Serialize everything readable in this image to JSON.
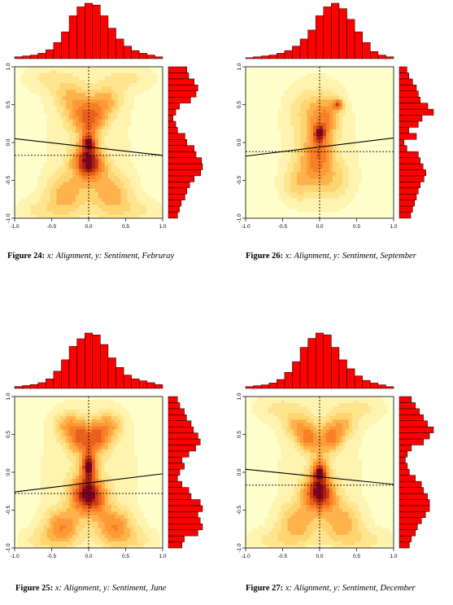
{
  "figures": [
    {
      "number": "Figure 24:",
      "x_label": "Alignment",
      "y_label": "Sentiment",
      "month": "Februray",
      "chart_data": {
        "type": "heatmap",
        "xlim": [
          -1,
          1
        ],
        "ylim": [
          -1,
          1
        ],
        "x_ticks": [
          "-1.0",
          "-0.5",
          "0.0",
          "0.5",
          "1.0"
        ],
        "y_ticks": [
          "-1.0",
          "-0.5",
          "0.0",
          "0.5",
          "1.0"
        ],
        "regression_line": {
          "intercept": -0.06,
          "slope": -0.11
        },
        "median_x": 0.0,
        "median_y": -0.17,
        "top_histogram": [
          2,
          3,
          4,
          6,
          10,
          18,
          30,
          48,
          58,
          62,
          60,
          48,
          34,
          22,
          14,
          9,
          6,
          4,
          2
        ],
        "right_histogram": [
          10,
          12,
          14,
          18,
          20,
          23,
          28,
          35,
          37,
          36,
          30,
          28,
          20,
          18,
          10,
          8,
          5,
          8,
          12,
          24,
          30,
          32,
          28,
          22,
          20
        ],
        "top_histogram_order": "left to right",
        "right_histogram_order": "bottom to top",
        "blobs": [
          {
            "x": 0.0,
            "y": 0.0,
            "sx": 0.06,
            "sy": 0.06,
            "w": 1.0
          },
          {
            "x": -0.1,
            "y": 0.35,
            "sx": 0.13,
            "sy": 0.16,
            "w": 0.75
          },
          {
            "x": 0.1,
            "y": 0.35,
            "sx": 0.11,
            "sy": 0.15,
            "w": 0.7
          },
          {
            "x": -0.25,
            "y": 0.6,
            "sx": 0.16,
            "sy": 0.15,
            "w": 0.5
          },
          {
            "x": 0.25,
            "y": 0.55,
            "sx": 0.14,
            "sy": 0.14,
            "w": 0.55
          },
          {
            "x": -0.08,
            "y": -0.25,
            "sx": 0.12,
            "sy": 0.14,
            "w": 1.0
          },
          {
            "x": 0.08,
            "y": -0.3,
            "sx": 0.12,
            "sy": 0.14,
            "w": 0.9
          },
          {
            "x": -0.3,
            "y": -0.65,
            "sx": 0.18,
            "sy": 0.17,
            "w": 0.65
          },
          {
            "x": 0.3,
            "y": -0.65,
            "sx": 0.18,
            "sy": 0.17,
            "w": 0.65
          },
          {
            "x": 0.0,
            "y": -0.05,
            "sx": 0.08,
            "sy": 0.24,
            "w": 0.8
          },
          {
            "x": -0.55,
            "y": 0.85,
            "sx": 0.25,
            "sy": 0.12,
            "w": 0.25
          },
          {
            "x": 0.55,
            "y": 0.85,
            "sx": 0.25,
            "sy": 0.12,
            "w": 0.25
          },
          {
            "x": -0.55,
            "y": -0.9,
            "sx": 0.3,
            "sy": 0.12,
            "w": 0.3
          },
          {
            "x": 0.55,
            "y": -0.9,
            "sx": 0.3,
            "sy": 0.12,
            "w": 0.3
          },
          {
            "x": 0.0,
            "y": 0.0,
            "sx": 0.55,
            "sy": 0.8,
            "w": 0.18
          }
        ]
      }
    },
    {
      "number": "Figure 26:",
      "x_label": "Alignment",
      "y_label": "Sentiment",
      "month": "September",
      "chart_data": {
        "type": "heatmap",
        "xlim": [
          -1,
          1
        ],
        "ylim": [
          -1,
          1
        ],
        "x_ticks": [
          "-1.0",
          "-0.5",
          "0.0",
          "0.5",
          "1.0"
        ],
        "y_ticks": [
          "-1.0",
          "-0.5",
          "0.0",
          "0.5",
          "1.0"
        ],
        "regression_line": {
          "intercept": -0.06,
          "slope": 0.12
        },
        "median_x": 0.0,
        "median_y": -0.12,
        "top_histogram": [
          1,
          2,
          3,
          4,
          6,
          9,
          14,
          22,
          32,
          48,
          58,
          62,
          56,
          44,
          30,
          18,
          8,
          4,
          2
        ],
        "right_histogram": [
          12,
          14,
          16,
          18,
          20,
          22,
          26,
          28,
          25,
          22,
          20,
          8,
          5,
          18,
          10,
          20,
          24,
          36,
          30,
          22,
          20,
          18,
          14,
          10,
          8
        ],
        "top_histogram_order": "left to right",
        "right_histogram_order": "bottom to top",
        "blobs": [
          {
            "x": 0.0,
            "y": 0.12,
            "sx": 0.05,
            "sy": 0.07,
            "w": 1.0
          },
          {
            "x": 0.25,
            "y": 0.5,
            "sx": 0.05,
            "sy": 0.05,
            "w": 0.95
          },
          {
            "x": 0.1,
            "y": 0.35,
            "sx": 0.12,
            "sy": 0.18,
            "w": 0.5
          },
          {
            "x": -0.15,
            "y": 0.4,
            "sx": 0.18,
            "sy": 0.2,
            "w": 0.3
          },
          {
            "x": -0.1,
            "y": -0.25,
            "sx": 0.16,
            "sy": 0.2,
            "w": 0.45
          },
          {
            "x": -0.3,
            "y": -0.55,
            "sx": 0.14,
            "sy": 0.15,
            "w": 0.35
          },
          {
            "x": 0.2,
            "y": -0.5,
            "sx": 0.16,
            "sy": 0.18,
            "w": 0.3
          },
          {
            "x": 0.0,
            "y": -0.05,
            "sx": 0.12,
            "sy": 0.28,
            "w": 0.55
          },
          {
            "x": 0.0,
            "y": 0.0,
            "sx": 0.45,
            "sy": 0.75,
            "w": 0.16
          }
        ]
      }
    },
    {
      "number": "Figure 25:",
      "x_label": "Alignment",
      "y_label": "Sentiment",
      "month": "June",
      "chart_data": {
        "type": "heatmap",
        "xlim": [
          -1,
          1
        ],
        "ylim": [
          -1,
          1
        ],
        "x_ticks": [
          "-1.0",
          "-0.5",
          "0.0",
          "0.5",
          "1.0"
        ],
        "y_ticks": [
          "-1.0",
          "-0.5",
          "0.0",
          "0.5",
          "1.0"
        ],
        "regression_line": {
          "intercept": -0.14,
          "slope": 0.12
        },
        "median_x": 0.0,
        "median_y": -0.28,
        "top_histogram": [
          2,
          3,
          4,
          6,
          10,
          18,
          30,
          44,
          52,
          58,
          56,
          46,
          32,
          22,
          14,
          10,
          8,
          6,
          4
        ],
        "right_histogram": [
          12,
          14,
          26,
          30,
          28,
          26,
          30,
          28,
          20,
          18,
          12,
          8,
          10,
          14,
          12,
          18,
          24,
          28,
          26,
          22,
          20,
          16,
          14,
          10,
          8
        ],
        "top_histogram_order": "left to right",
        "right_histogram_order": "bottom to top",
        "blobs": [
          {
            "x": 0.0,
            "y": 0.1,
            "sx": 0.06,
            "sy": 0.1,
            "w": 1.0
          },
          {
            "x": -0.12,
            "y": 0.45,
            "sx": 0.12,
            "sy": 0.14,
            "w": 0.8
          },
          {
            "x": 0.12,
            "y": 0.45,
            "sx": 0.12,
            "sy": 0.14,
            "w": 0.8
          },
          {
            "x": -0.28,
            "y": 0.62,
            "sx": 0.13,
            "sy": 0.12,
            "w": 0.5
          },
          {
            "x": 0.28,
            "y": 0.62,
            "sx": 0.13,
            "sy": 0.12,
            "w": 0.5
          },
          {
            "x": -0.1,
            "y": -0.3,
            "sx": 0.12,
            "sy": 0.16,
            "w": 0.95
          },
          {
            "x": 0.1,
            "y": -0.35,
            "sx": 0.12,
            "sy": 0.16,
            "w": 0.9
          },
          {
            "x": -0.35,
            "y": -0.7,
            "sx": 0.16,
            "sy": 0.15,
            "w": 0.7
          },
          {
            "x": 0.35,
            "y": -0.7,
            "sx": 0.16,
            "sy": 0.15,
            "w": 0.7
          },
          {
            "x": 0.0,
            "y": -0.05,
            "sx": 0.08,
            "sy": 0.22,
            "w": 0.7
          },
          {
            "x": -0.55,
            "y": -0.9,
            "sx": 0.25,
            "sy": 0.12,
            "w": 0.3
          },
          {
            "x": 0.55,
            "y": -0.9,
            "sx": 0.25,
            "sy": 0.12,
            "w": 0.3
          },
          {
            "x": 0.0,
            "y": 0.0,
            "sx": 0.55,
            "sy": 0.8,
            "w": 0.18
          }
        ]
      }
    },
    {
      "number": "Figure 27:",
      "x_label": "Alignment",
      "y_label": "Sentiment",
      "month": "December",
      "chart_data": {
        "type": "heatmap",
        "xlim": [
          -1,
          1
        ],
        "ylim": [
          -1,
          1
        ],
        "x_ticks": [
          "-1.0",
          "-0.5",
          "0.0",
          "0.5",
          "1.0"
        ],
        "y_ticks": [
          "-1.0",
          "-0.5",
          "0.0",
          "0.5",
          "1.0"
        ],
        "regression_line": {
          "intercept": -0.06,
          "slope": -0.1
        },
        "median_x": 0.0,
        "median_y": -0.17,
        "top_histogram": [
          2,
          3,
          4,
          6,
          10,
          18,
          30,
          46,
          56,
          62,
          60,
          46,
          32,
          22,
          14,
          9,
          6,
          4,
          2
        ],
        "right_histogram": [
          10,
          12,
          16,
          18,
          22,
          26,
          30,
          30,
          28,
          24,
          22,
          16,
          10,
          8,
          6,
          8,
          12,
          24,
          30,
          34,
          28,
          24,
          20,
          16,
          12
        ],
        "top_histogram_order": "left to right",
        "right_histogram_order": "bottom to top",
        "blobs": [
          {
            "x": 0.0,
            "y": 0.0,
            "sx": 0.06,
            "sy": 0.07,
            "w": 1.0
          },
          {
            "x": -0.15,
            "y": 0.45,
            "sx": 0.1,
            "sy": 0.12,
            "w": 0.9
          },
          {
            "x": 0.15,
            "y": 0.45,
            "sx": 0.1,
            "sy": 0.12,
            "w": 0.9
          },
          {
            "x": -0.3,
            "y": 0.62,
            "sx": 0.13,
            "sy": 0.12,
            "w": 0.55
          },
          {
            "x": 0.3,
            "y": 0.62,
            "sx": 0.13,
            "sy": 0.12,
            "w": 0.55
          },
          {
            "x": -0.08,
            "y": -0.28,
            "sx": 0.12,
            "sy": 0.15,
            "w": 1.0
          },
          {
            "x": 0.08,
            "y": -0.3,
            "sx": 0.12,
            "sy": 0.15,
            "w": 0.9
          },
          {
            "x": -0.3,
            "y": -0.65,
            "sx": 0.17,
            "sy": 0.16,
            "w": 0.65
          },
          {
            "x": 0.3,
            "y": -0.65,
            "sx": 0.17,
            "sy": 0.16,
            "w": 0.65
          },
          {
            "x": 0.0,
            "y": -0.05,
            "sx": 0.08,
            "sy": 0.24,
            "w": 0.75
          },
          {
            "x": -0.55,
            "y": 0.85,
            "sx": 0.25,
            "sy": 0.12,
            "w": 0.25
          },
          {
            "x": 0.55,
            "y": 0.85,
            "sx": 0.25,
            "sy": 0.12,
            "w": 0.25
          },
          {
            "x": -0.55,
            "y": -0.9,
            "sx": 0.3,
            "sy": 0.12,
            "w": 0.3
          },
          {
            "x": 0.55,
            "y": -0.9,
            "sx": 0.3,
            "sy": 0.12,
            "w": 0.3
          },
          {
            "x": 0.0,
            "y": 0.0,
            "sx": 0.55,
            "sy": 0.8,
            "w": 0.18
          }
        ]
      }
    }
  ],
  "colors": {
    "background": "#FFFFCC",
    "histogram_bar": "#FF0000",
    "levels": [
      "#FFFFCC",
      "#FFF3B0",
      "#FFE58F",
      "#FED470",
      "#FEB24C",
      "#FD9A36",
      "#F77F27",
      "#E8601C",
      "#CC3D10",
      "#A8210E",
      "#800026"
    ]
  }
}
